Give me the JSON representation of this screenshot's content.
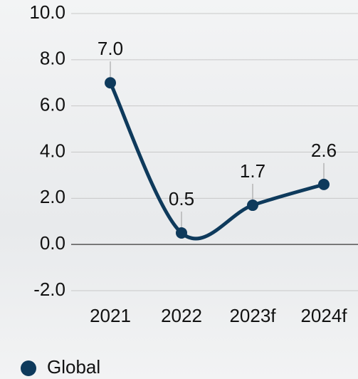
{
  "chart_data": {
    "type": "line",
    "categories": [
      "2021",
      "2022",
      "2023f",
      "2024f"
    ],
    "series": [
      {
        "name": "Global",
        "color": "#0e3a5c",
        "values": [
          7.0,
          0.5,
          1.7,
          2.6
        ],
        "value_labels": [
          "7.0",
          "0.5",
          "1.7",
          "2.6"
        ]
      }
    ],
    "ylim": [
      -2,
      10
    ],
    "yticks": [
      {
        "value": -2,
        "label": "-2.0"
      },
      {
        "value": 0,
        "label": "0.0"
      },
      {
        "value": 2,
        "label": "2.0"
      },
      {
        "value": 4,
        "label": "4.0"
      },
      {
        "value": 6,
        "label": "6.0"
      },
      {
        "value": 8,
        "label": "8.0"
      },
      {
        "value": 10,
        "label": "10.0"
      }
    ],
    "grid": true,
    "legend": "bottom-left"
  }
}
